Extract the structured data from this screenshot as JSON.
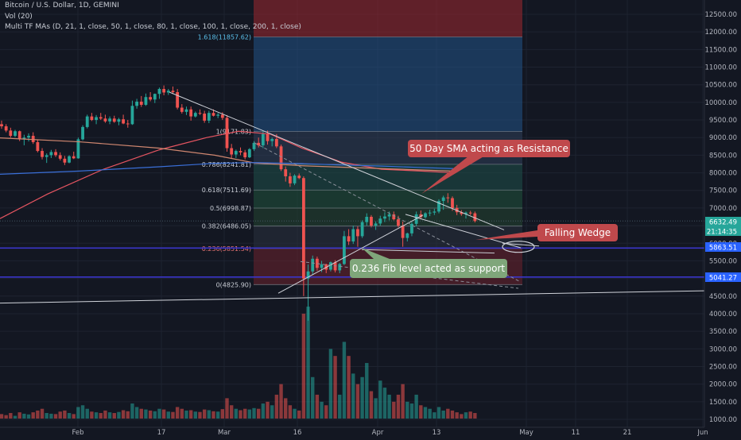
{
  "header": {
    "symbol": "Bitcoin / U.S. Dollar, 1D, GEMINI",
    "vol": "Vol (20)",
    "ma": "Multi TF MAs (D, 21, 1, close, 50, 1, close, 80, 1, close, 100, 1, close, 200, 1, close)"
  },
  "price_axis": [
    "12500.00",
    "12000.00",
    "11500.00",
    "11000.00",
    "10500.00",
    "10000.00",
    "9500.00",
    "9000.00",
    "8500.00",
    "8000.00",
    "7500.00",
    "7000.00",
    "6500.00",
    "6000.00",
    "5500.00",
    "5000.00",
    "4500.00",
    "4000.00",
    "3500.00",
    "3000.00",
    "2500.00",
    "2000.00",
    "1500.00",
    "1000.00"
  ],
  "time_axis": [
    "Feb",
    "17",
    "Mar",
    "16",
    "Apr",
    "13",
    "May",
    "11",
    "21",
    "Jun"
  ],
  "price_tags": {
    "last": "6632.49",
    "countdown": "21:14:35",
    "level1": "5863.51",
    "level2": "5041.27"
  },
  "fib_levels": [
    {
      "label": "1.618(11857.62)",
      "price": 11857.62
    },
    {
      "label": "1(9171.83)",
      "price": 9171.83
    },
    {
      "label": "0.786(8241.81)",
      "price": 8241.81
    },
    {
      "label": "0.618(7511.69)",
      "price": 7511.69
    },
    {
      "label": "0.5(6998.87)",
      "price": 6998.87
    },
    {
      "label": "0.382(6486.05)",
      "price": 6486.05
    },
    {
      "label": "0.236(5851.54)",
      "price": 5851.54
    },
    {
      "label": "0(4825.90)",
      "price": 4825.9
    }
  ],
  "annotations": {
    "resistance": "50 Day SMA acting as Resistance",
    "wedge": "Falling Wedge",
    "support": "0.236 Fib level acted as support"
  },
  "colors": {
    "background": "#131722",
    "up": "#26a69a",
    "down": "#ef5350",
    "accent_blue": "#2962ff",
    "level_line": "#3a35c9",
    "callout_red": "#c0494c",
    "callout_green": "#7fa67a"
  }
}
